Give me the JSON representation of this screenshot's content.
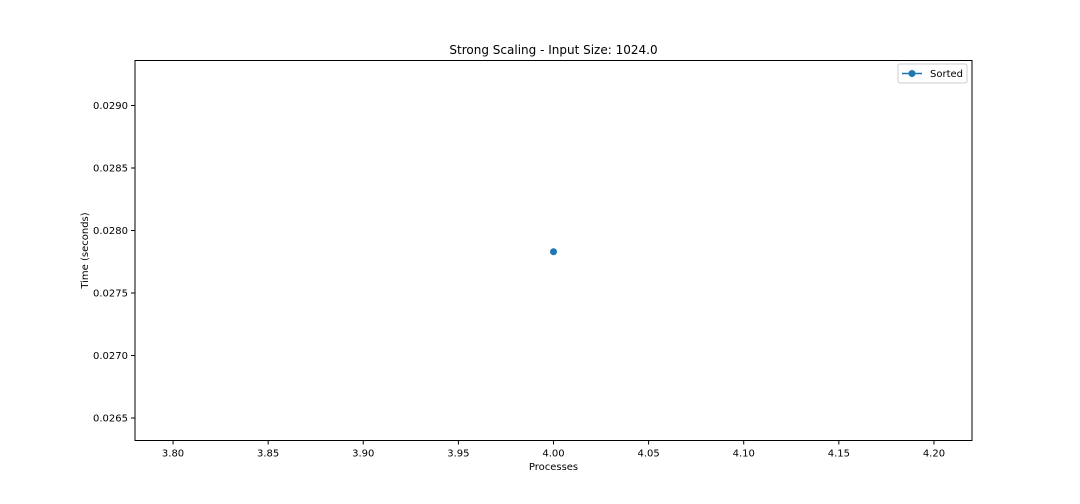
{
  "chart_data": {
    "type": "line",
    "title": "Strong Scaling - Input Size: 1024.0",
    "xlabel": "Processes",
    "ylabel": "Time (seconds)",
    "xlim": [
      3.78,
      4.22
    ],
    "ylim": [
      0.02632,
      0.02936
    ],
    "x_ticks": [
      3.8,
      3.85,
      3.9,
      3.95,
      4.0,
      4.05,
      4.1,
      4.15,
      4.2
    ],
    "x_tick_labels": [
      "3.80",
      "3.85",
      "3.90",
      "3.95",
      "4.00",
      "4.05",
      "4.10",
      "4.15",
      "4.20"
    ],
    "y_ticks": [
      0.0265,
      0.027,
      0.0275,
      0.028,
      0.0285,
      0.029
    ],
    "y_tick_labels": [
      "0.0265",
      "0.0270",
      "0.0275",
      "0.0280",
      "0.0285",
      "0.0290"
    ],
    "grid": false,
    "legend_position": "top-right",
    "series": [
      {
        "name": "Sorted",
        "color": "#1f77b4",
        "marker": "circle",
        "x": [
          4.0
        ],
        "y": [
          0.02783
        ]
      }
    ]
  }
}
